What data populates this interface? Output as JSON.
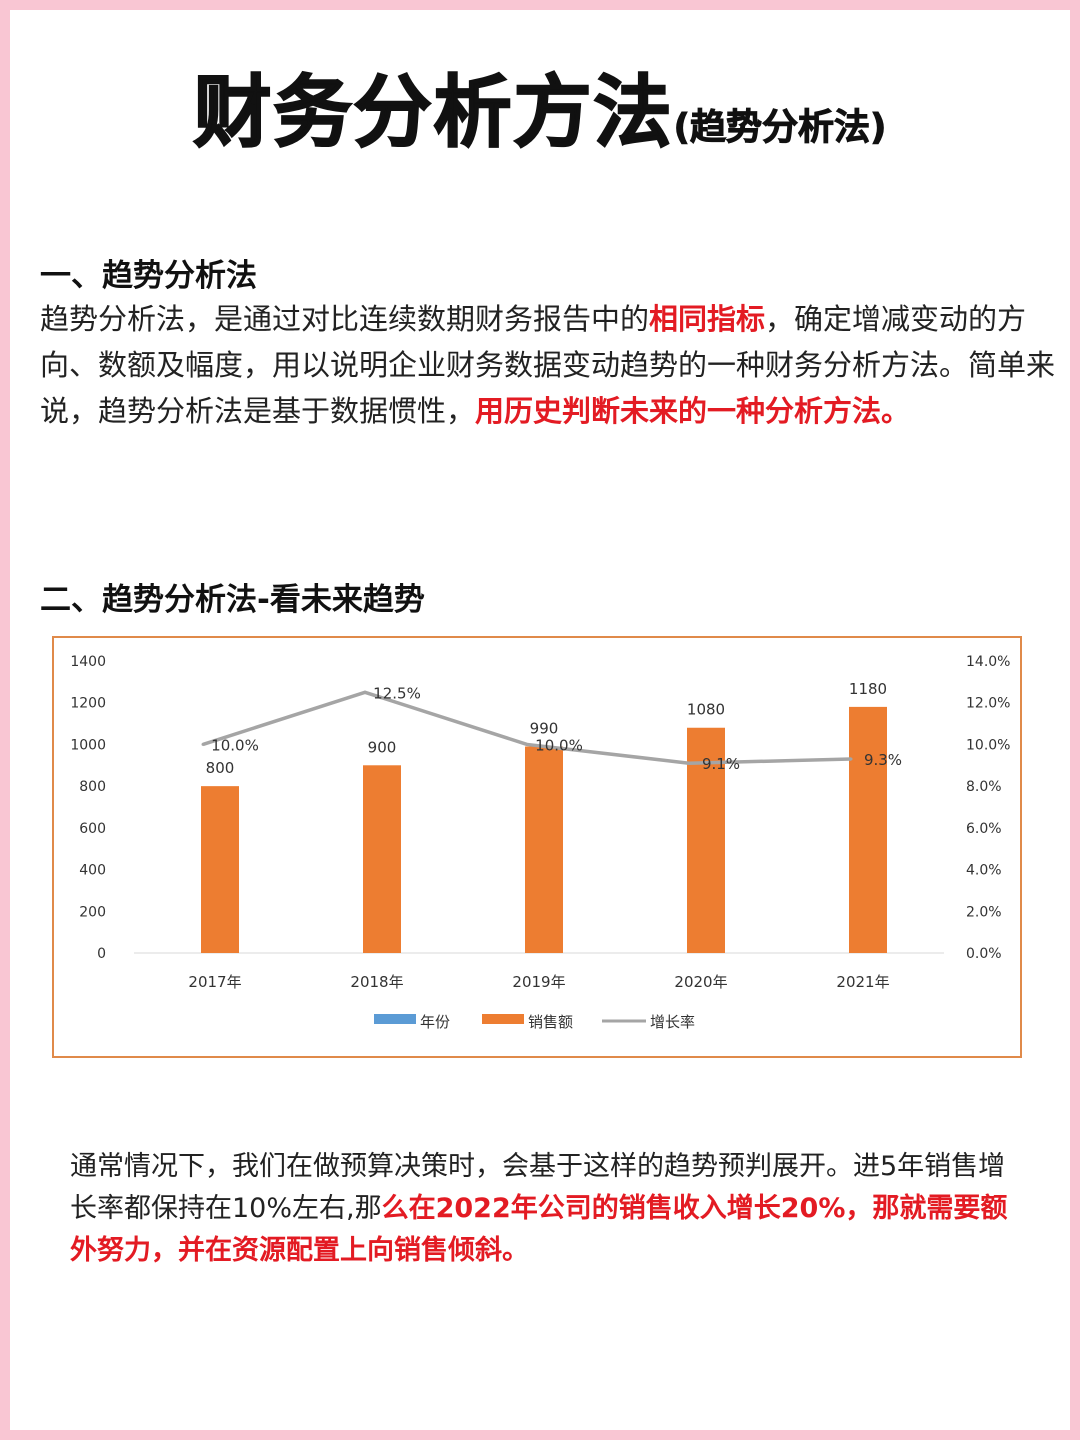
{
  "title": {
    "main": "财务分析方法",
    "sub": "(趋势分析法)"
  },
  "section1": {
    "heading": "一、趋势分析法",
    "p1": "趋势分析法，是通过对比连续数期财务报告中的",
    "p1_red": "相同指标",
    "p2": "，确定增减变动的方向、数额及幅度，用以说明企业财务数据变动趋势的一种财务分析方法。简单来说，趋势分析法是基于数据惯性，",
    "p2_red": "用历史判断未来的一种分析方法。"
  },
  "section2": {
    "heading": "二、趋势分析法-看未来趋势"
  },
  "chart_data": {
    "type": "bar",
    "categories": [
      "2017年",
      "2018年",
      "2019年",
      "2020年",
      "2021年"
    ],
    "series": [
      {
        "name": "年份",
        "type": "bar",
        "color": "#5b9bd5",
        "values": [
          null,
          null,
          null,
          null,
          null
        ]
      },
      {
        "name": "销售额",
        "type": "bar",
        "axis": "left",
        "color": "#ed7d31",
        "values": [
          800,
          900,
          990,
          1080,
          1180
        ],
        "labels": [
          "800",
          "900",
          "990",
          "1080",
          "1180"
        ]
      },
      {
        "name": "增长率",
        "type": "line",
        "axis": "right",
        "color": "#a5a5a5",
        "values": [
          10.0,
          12.5,
          10.0,
          9.1,
          9.3
        ],
        "labels": [
          "10.0%",
          "12.5%",
          "10.0%",
          "9.1%",
          "9.3%"
        ]
      }
    ],
    "y_left": {
      "min": 0,
      "max": 1400,
      "ticks": [
        "0",
        "200",
        "400",
        "600",
        "800",
        "1000",
        "1200",
        "1400"
      ]
    },
    "y_right": {
      "min": 0,
      "max": 14,
      "ticks": [
        "0.0%",
        "2.0%",
        "4.0%",
        "6.0%",
        "8.0%",
        "10.0%",
        "12.0%",
        "14.0%"
      ]
    },
    "legend_position": "bottom",
    "grid": false
  },
  "bottom": {
    "p1": "通常情况下，我们在做预算决策时，会基于这样的趋势预判展开。进5年销售增长率都保持在10%左右,那",
    "p1_red": "么在2022年公司的销售收入增长20%，那就需要额外努力，并在资源配置上向销售倾斜。"
  }
}
